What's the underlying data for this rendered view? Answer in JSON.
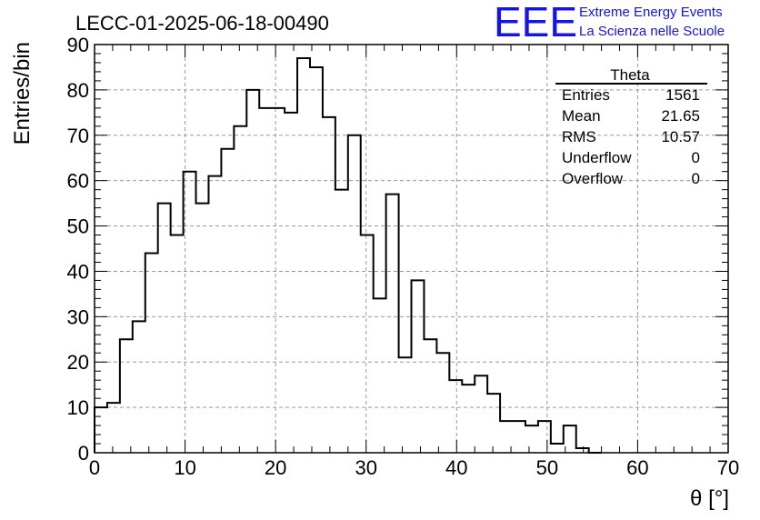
{
  "title": "LECC-01-2025-06-18-00490",
  "logo": {
    "mark": "EEE",
    "line1": "Extreme Energy Events",
    "line2": "La Scienza nelle Scuole",
    "color": "#1414e6"
  },
  "stats": {
    "name": "Theta",
    "rows": [
      {
        "label": "Entries",
        "value": "1561"
      },
      {
        "label": "Mean",
        "value": "21.65"
      },
      {
        "label": "RMS",
        "value": "10.57"
      },
      {
        "label": "Underflow",
        "value": "0"
      },
      {
        "label": "Overflow",
        "value": "0"
      }
    ]
  },
  "chart_data": {
    "type": "histogram",
    "xlabel": "θ [°]",
    "ylabel": "Entries/bin",
    "xlim": [
      0,
      70
    ],
    "ylim": [
      0,
      90
    ],
    "bin_width": 1.4,
    "bin_start": 0,
    "grid": true,
    "x_ticks": [
      0,
      10,
      20,
      30,
      40,
      50,
      60,
      70
    ],
    "y_ticks": [
      0,
      10,
      20,
      30,
      40,
      50,
      60,
      70,
      80,
      90
    ],
    "values": [
      10,
      11,
      25,
      29,
      44,
      55,
      48,
      62,
      55,
      61,
      67,
      72,
      80,
      76,
      76,
      75,
      87,
      85,
      74,
      58,
      70,
      48,
      34,
      57,
      21,
      38,
      25,
      22,
      16,
      15,
      17,
      13,
      7,
      7,
      6,
      7,
      2,
      6,
      1,
      0
    ],
    "line_color": "#000000"
  }
}
